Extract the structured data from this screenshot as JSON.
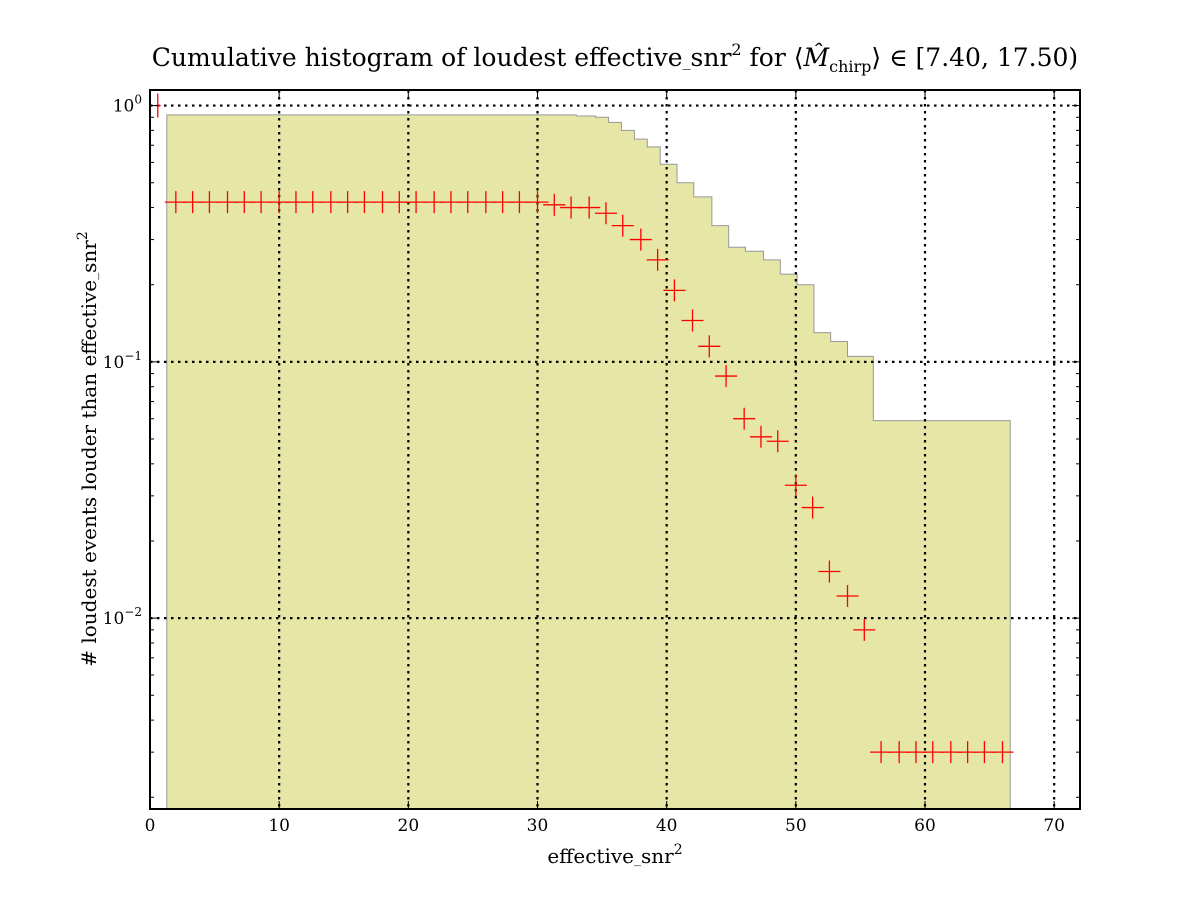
{
  "chart_data": {
    "type": "histogram",
    "title": {
      "prefix": "Cumulative histogram of loudest effective",
      "sub": "snr",
      "sup": "2",
      "middle": " for ⟨",
      "mhat": "M̂",
      "msub": "chirp",
      "suffix": "⟩ ∈ [7.40, 17.50)"
    },
    "xlabel": {
      "base": "effective",
      "sub": "snr",
      "sup": "2"
    },
    "ylabel": {
      "text": "# loudest events louder than effective",
      "sub": "snr",
      "sup": "2"
    },
    "xlim": [
      0,
      72
    ],
    "ylim": [
      0.0018,
      1.15
    ],
    "yscale": "log",
    "grid": true,
    "xticks": [
      0,
      10,
      20,
      30,
      40,
      50,
      60,
      70
    ],
    "xtick_labels": [
      "0",
      "10",
      "20",
      "30",
      "40",
      "50",
      "60",
      "70"
    ],
    "yticks": [
      {
        "value": 1,
        "base": "10",
        "exp": "0"
      },
      {
        "value": 0.1,
        "base": "10",
        "exp": "−1"
      },
      {
        "value": 0.01,
        "base": "10",
        "exp": "−2"
      }
    ],
    "background_histogram": {
      "color": "#e6e6a6",
      "edgecolor": "#999999",
      "steps": [
        [
          1.3,
          0.92
        ],
        [
          33.0,
          0.91
        ],
        [
          34.5,
          0.9
        ],
        [
          35.5,
          0.86
        ],
        [
          36.5,
          0.8
        ],
        [
          37.5,
          0.74
        ],
        [
          38.5,
          0.69
        ],
        [
          39.5,
          0.59
        ],
        [
          40.8,
          0.5
        ],
        [
          42.1,
          0.44
        ],
        [
          43.5,
          0.34
        ],
        [
          44.8,
          0.28
        ],
        [
          46.1,
          0.27
        ],
        [
          47.5,
          0.25
        ],
        [
          48.8,
          0.22
        ],
        [
          50.1,
          0.2
        ],
        [
          51.4,
          0.13
        ],
        [
          52.7,
          0.12
        ],
        [
          54.0,
          0.105
        ],
        [
          56.0,
          0.059
        ]
      ],
      "x_end": 66.6
    },
    "foreground_points": {
      "color": "#ff0000",
      "marker": "+",
      "points": [
        [
          0.6,
          1.0
        ],
        [
          2.0,
          0.42
        ],
        [
          3.3,
          0.42
        ],
        [
          4.6,
          0.42
        ],
        [
          6.0,
          0.42
        ],
        [
          7.3,
          0.42
        ],
        [
          8.6,
          0.42
        ],
        [
          10.0,
          0.42
        ],
        [
          11.3,
          0.42
        ],
        [
          12.6,
          0.42
        ],
        [
          14.0,
          0.42
        ],
        [
          15.3,
          0.42
        ],
        [
          16.6,
          0.42
        ],
        [
          18.0,
          0.42
        ],
        [
          19.3,
          0.42
        ],
        [
          20.6,
          0.42
        ],
        [
          22.0,
          0.42
        ],
        [
          23.3,
          0.42
        ],
        [
          24.6,
          0.42
        ],
        [
          26.0,
          0.42
        ],
        [
          27.3,
          0.42
        ],
        [
          28.6,
          0.42
        ],
        [
          30.0,
          0.42
        ],
        [
          31.3,
          0.41
        ],
        [
          32.6,
          0.4
        ],
        [
          34.0,
          0.4
        ],
        [
          35.3,
          0.38
        ],
        [
          36.6,
          0.34
        ],
        [
          38.0,
          0.3
        ],
        [
          39.3,
          0.25
        ],
        [
          40.6,
          0.19
        ],
        [
          42.0,
          0.145
        ],
        [
          43.3,
          0.115
        ],
        [
          44.6,
          0.088
        ],
        [
          46.0,
          0.06
        ],
        [
          47.3,
          0.051
        ],
        [
          48.6,
          0.049
        ],
        [
          50.0,
          0.033
        ],
        [
          51.3,
          0.027
        ],
        [
          52.6,
          0.0152
        ],
        [
          54.0,
          0.0122
        ],
        [
          55.3,
          0.009
        ],
        [
          56.6,
          0.003
        ],
        [
          58.0,
          0.003
        ],
        [
          59.3,
          0.003
        ],
        [
          60.6,
          0.003
        ],
        [
          62.0,
          0.003
        ],
        [
          63.3,
          0.003
        ],
        [
          64.6,
          0.003
        ],
        [
          66.0,
          0.003
        ]
      ]
    }
  }
}
